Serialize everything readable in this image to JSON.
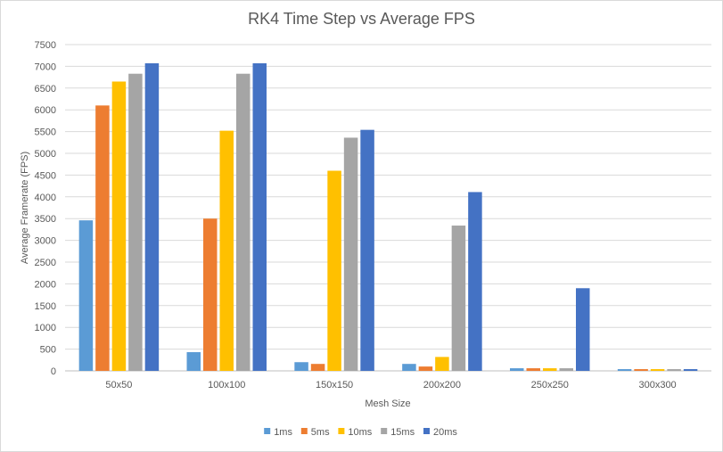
{
  "chart_data": {
    "type": "bar",
    "title": "RK4 Time Step vs Average FPS",
    "xlabel": "Mesh Size",
    "ylabel": "Average Framerate (FPS)",
    "ylim": [
      0,
      7500
    ],
    "ytick_step": 500,
    "grid": true,
    "legend_position": "bottom",
    "categories": [
      "50x50",
      "100x100",
      "150x150",
      "200x200",
      "250x250",
      "300x300"
    ],
    "series": [
      {
        "name": "1ms",
        "color": "#5B9BD5",
        "values": [
          3460,
          430,
          200,
          160,
          60,
          40
        ]
      },
      {
        "name": "5ms",
        "color": "#ED7D31",
        "values": [
          6100,
          3500,
          160,
          100,
          60,
          40
        ]
      },
      {
        "name": "10ms",
        "color": "#FFC000",
        "values": [
          6650,
          5520,
          4600,
          320,
          60,
          40
        ]
      },
      {
        "name": "15ms",
        "color": "#A5A5A5",
        "values": [
          6830,
          6830,
          5360,
          3340,
          60,
          40
        ]
      },
      {
        "name": "20ms",
        "color": "#4472C4",
        "values": [
          7070,
          7070,
          5540,
          4110,
          1900,
          40
        ]
      }
    ]
  }
}
